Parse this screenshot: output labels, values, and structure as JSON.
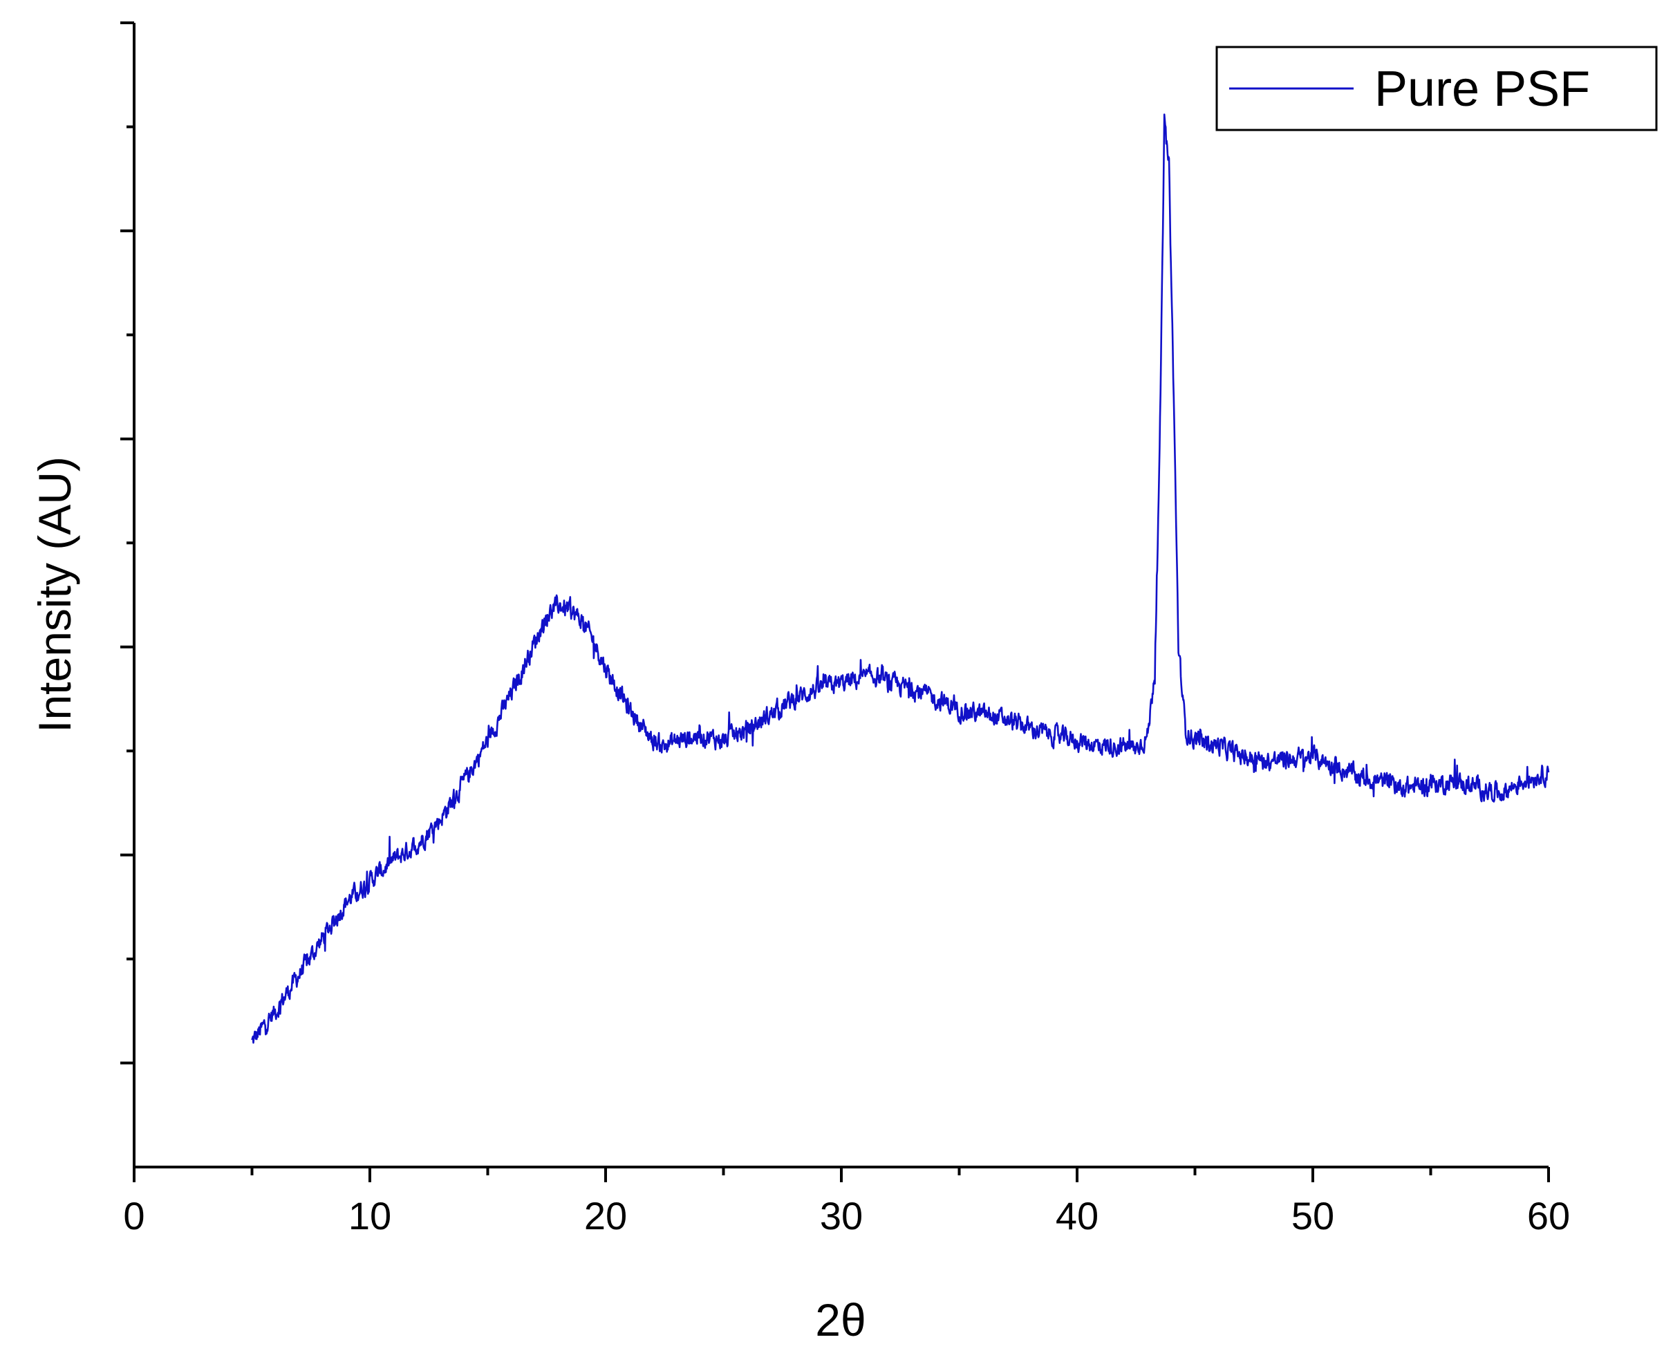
{
  "chart_data": {
    "type": "line",
    "xlabel": "2θ",
    "ylabel": "Intensity (AU)",
    "xlim": [
      0,
      60
    ],
    "ylim": [
      0,
      11
    ],
    "x_ticks": [
      0,
      10,
      20,
      30,
      40,
      50,
      60
    ],
    "x_tick_labels": [
      "0",
      "10",
      "20",
      "30",
      "40",
      "50",
      "60"
    ],
    "y_tick_labels_shown": false,
    "grid": false,
    "legend_position": "top-right",
    "series": [
      {
        "name": "Pure PSF",
        "color": "#1010c8",
        "x": [
          5,
          6,
          7,
          8,
          9,
          10,
          11,
          12,
          13,
          14,
          15,
          16,
          17,
          17.5,
          18,
          18.5,
          19,
          19.5,
          20,
          20.5,
          21,
          21.5,
          22,
          22.5,
          23,
          24,
          25,
          26,
          27,
          28,
          29,
          30,
          31,
          31.5,
          32,
          33,
          34,
          35,
          36,
          37,
          38,
          39,
          40,
          41,
          42,
          42.5,
          43,
          43.3,
          43.5,
          43.7,
          43.9,
          44.1,
          44.3,
          44.6,
          45,
          46,
          47,
          48,
          49,
          50,
          51,
          52,
          53,
          54,
          55,
          56,
          57,
          58,
          59,
          60
        ],
        "values": [
          1.2,
          1.5,
          1.85,
          2.2,
          2.55,
          2.75,
          2.95,
          3.1,
          3.35,
          3.7,
          4.1,
          4.55,
          5.05,
          5.3,
          5.4,
          5.35,
          5.25,
          5.05,
          4.8,
          4.6,
          4.4,
          4.25,
          4.1,
          4.05,
          4.1,
          4.15,
          4.1,
          4.2,
          4.35,
          4.5,
          4.6,
          4.65,
          4.7,
          4.72,
          4.65,
          4.6,
          4.5,
          4.4,
          4.35,
          4.3,
          4.22,
          4.15,
          4.1,
          4.05,
          4.05,
          4.02,
          4.15,
          4.8,
          6.8,
          10.0,
          9.6,
          7.4,
          5.0,
          4.2,
          4.1,
          4.05,
          3.95,
          3.9,
          3.92,
          3.95,
          3.85,
          3.75,
          3.7,
          3.65,
          3.68,
          3.7,
          3.65,
          3.6,
          3.72,
          3.8
        ]
      }
    ]
  }
}
